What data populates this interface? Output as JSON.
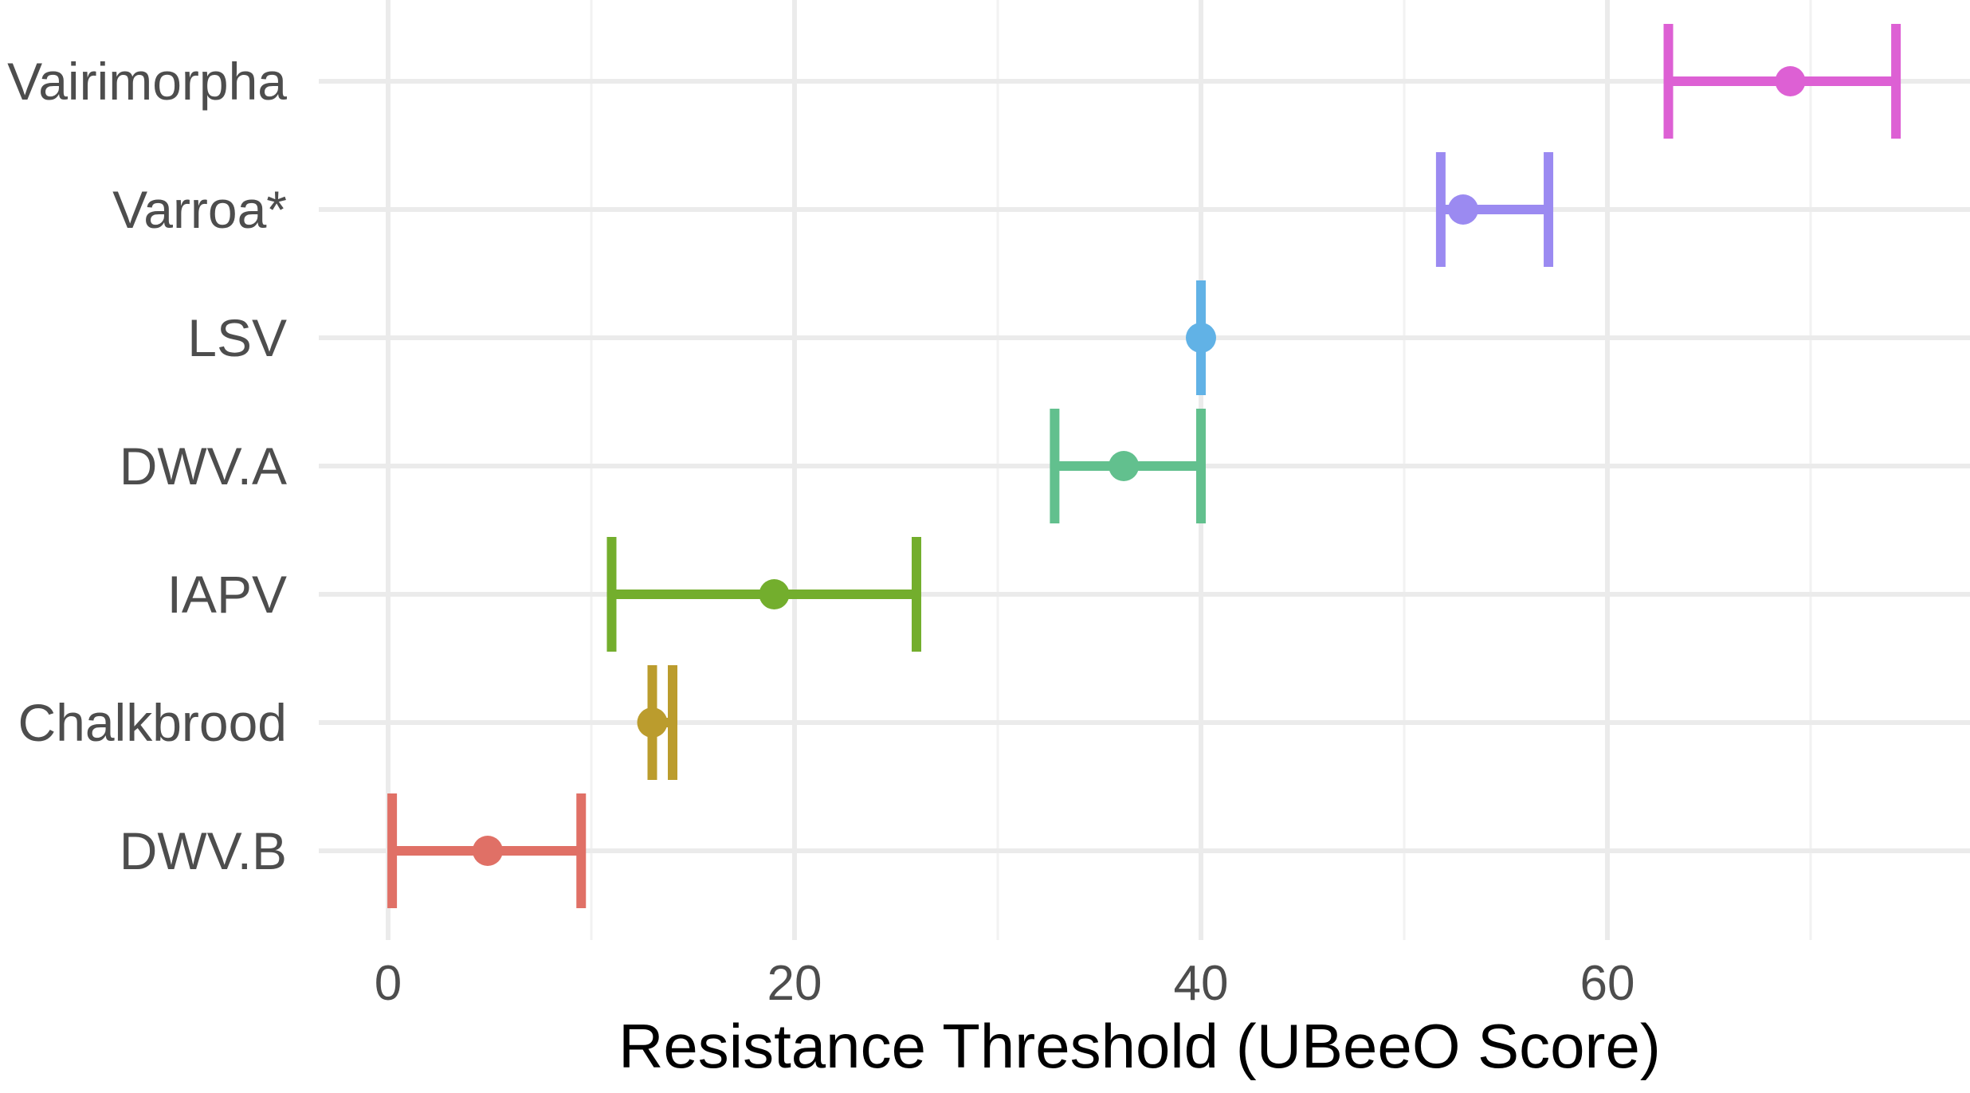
{
  "chart_data": {
    "type": "errorbar",
    "xlabel": "Resistance Threshold (UBeeO Score)",
    "ylabel": "",
    "xlim": [
      -1.5,
      78
    ],
    "x_ticks": [
      0,
      20,
      40,
      60
    ],
    "x_minor_ticks": [
      10,
      30,
      50,
      70
    ],
    "grid": true,
    "legend": "none",
    "categories": [
      "Vairimorpha",
      "Varroa*",
      "LSV",
      "DWV.A",
      "IAPV",
      "Chalkbrood",
      "DWV.B"
    ],
    "points": [
      {
        "label": "Vairimorpha",
        "value": 69.0,
        "lower": 63.0,
        "upper": 74.2,
        "color": "#dd60d4"
      },
      {
        "label": "Varroa*",
        "value": 52.9,
        "lower": 51.8,
        "upper": 57.1,
        "color": "#9b8af1"
      },
      {
        "label": "LSV",
        "value": 40.0,
        "lower": 40.0,
        "upper": 40.0,
        "color": "#61b2e6"
      },
      {
        "label": "DWV.A",
        "value": 36.2,
        "lower": 32.8,
        "upper": 40.0,
        "color": "#62c08e"
      },
      {
        "label": "IAPV",
        "value": 19.0,
        "lower": 11.0,
        "upper": 26.0,
        "color": "#73ae2d"
      },
      {
        "label": "Chalkbrood",
        "value": 13.0,
        "lower": 13.0,
        "upper": 14.0,
        "color": "#bb9c2d"
      },
      {
        "label": "DWV.B",
        "value": 4.9,
        "lower": 0.2,
        "upper": 9.5,
        "color": "#e07066"
      }
    ]
  }
}
